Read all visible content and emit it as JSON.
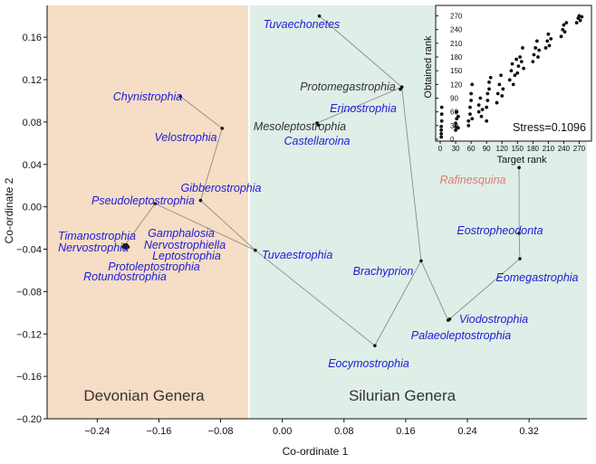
{
  "chart_data": [
    {
      "type": "scatter",
      "title": "",
      "xlabel": "Co-ordinate 1",
      "ylabel": "Co-ordinate 2",
      "xlim": [
        -0.305,
        0.395
      ],
      "ylim": [
        -0.2,
        0.19
      ],
      "x_ticks": [
        -0.24,
        -0.16,
        -0.08,
        0.0,
        0.08,
        0.16,
        0.24,
        0.32
      ],
      "x_tick_labels": [
        "−0.24",
        "−0.16",
        "−0.08",
        "0.00",
        "0.08",
        "0.16",
        "0.24",
        "0.32"
      ],
      "y_ticks": [
        0.16,
        0.12,
        0.08,
        0.04,
        0.0,
        -0.04,
        -0.08,
        -0.12,
        -0.16,
        -0.2
      ],
      "y_tick_labels": [
        "0.16",
        "0.12",
        "0.08",
        "0.04",
        "0.00",
        "−0.04",
        "−0.08",
        "−0.12",
        "−0.16",
        "−0.20"
      ],
      "regions": [
        {
          "label": "Devonian Genera",
          "x_range": [
            -0.305,
            -0.043
          ],
          "color": "#f6ddc5"
        },
        {
          "label": "Silurian Genera",
          "x_range": [
            -0.043,
            0.395
          ],
          "color": "#dfeee6"
        }
      ],
      "colors": {
        "blue_label": "#1c1cd8",
        "gray_label": "#333333",
        "red_label": "#e07a7a",
        "point": "#111111",
        "line": "#8c8c8c"
      },
      "points": [
        {
          "name": "Chynistrophia",
          "x": -0.132,
          "y": 0.104,
          "color": "blue"
        },
        {
          "name": "Velostrophia",
          "x": -0.078,
          "y": 0.074,
          "color": "blue"
        },
        {
          "name": "Gibberostrophia",
          "x": -0.106,
          "y": 0.006,
          "color": "blue"
        },
        {
          "name": "Pseudoleptostrophia",
          "x": -0.165,
          "y": 0.003,
          "color": "blue"
        },
        {
          "name": "Timanostrophia",
          "x": -0.204,
          "y": -0.037,
          "color": "blue"
        },
        {
          "name": "Nervostrophia",
          "x": -0.206,
          "y": -0.038,
          "color": "blue"
        },
        {
          "name": "Gamphalosia",
          "x": -0.202,
          "y": -0.036,
          "color": "blue"
        },
        {
          "name": "Nervostrophiella",
          "x": -0.2,
          "y": -0.038,
          "color": "blue"
        },
        {
          "name": "Leptostrophia",
          "x": -0.203,
          "y": -0.039,
          "color": "blue"
        },
        {
          "name": "Protoleptostrophia",
          "x": -0.201,
          "y": -0.037,
          "color": "blue"
        },
        {
          "name": "Rotundostrophia",
          "x": -0.205,
          "y": -0.036,
          "color": "blue"
        },
        {
          "name": "Tuvaestrophia",
          "x": -0.035,
          "y": -0.041,
          "color": "blue"
        },
        {
          "name": "Eocymostrophia",
          "x": 0.12,
          "y": -0.131,
          "color": "blue"
        },
        {
          "name": "Brachyprion",
          "x": 0.18,
          "y": -0.051,
          "color": "blue"
        },
        {
          "name": "Palaeoleptostrophia",
          "x": 0.215,
          "y": -0.107,
          "color": "blue"
        },
        {
          "name": "Viodostrophia",
          "x": 0.217,
          "y": -0.106,
          "color": "blue"
        },
        {
          "name": "Eomegastrophia",
          "x": 0.308,
          "y": -0.049,
          "color": "blue"
        },
        {
          "name": "Eostropheodonta",
          "x": 0.307,
          "y": -0.025,
          "color": "blue"
        },
        {
          "name": "Rafinesquina",
          "x": 0.307,
          "y": 0.037,
          "color": "red"
        },
        {
          "name": "Tuvaechonetes",
          "x": 0.048,
          "y": 0.18,
          "color": "blue"
        },
        {
          "name": "Protomegastrophia",
          "x": 0.155,
          "y": 0.113,
          "color": "gray"
        },
        {
          "name": "Erinostrophia",
          "x": 0.153,
          "y": 0.111,
          "color": "blue"
        },
        {
          "name": "Mesoleptostrophia",
          "x": 0.045,
          "y": 0.079,
          "color": "gray"
        },
        {
          "name": "Castellaroina",
          "x": 0.047,
          "y": 0.077,
          "color": "blue"
        }
      ],
      "edges": [
        [
          "Chynistrophia",
          "Velostrophia"
        ],
        [
          "Velostrophia",
          "Gibberostrophia"
        ],
        [
          "Gibberostrophia",
          "Tuvaestrophia"
        ],
        [
          "Pseudoleptostrophia",
          "Tuvaestrophia"
        ],
        [
          "Pseudoleptostrophia",
          "Nervostrophia"
        ],
        [
          "Tuvaestrophia",
          "Eocymostrophia"
        ],
        [
          "Eocymostrophia",
          "Brachyprion"
        ],
        [
          "Brachyprion",
          "Protomegastrophia"
        ],
        [
          "Brachyprion",
          "Palaeoleptostrophia"
        ],
        [
          "Palaeoleptostrophia",
          "Eomegastrophia"
        ],
        [
          "Eomegastrophia",
          "Eostropheodonta"
        ],
        [
          "Eostropheodonta",
          "Rafinesquina"
        ],
        [
          "Protomegastrophia",
          "Tuvaechonetes"
        ],
        [
          "Protomegastrophia",
          "Mesoleptostrophia"
        ]
      ]
    },
    {
      "type": "scatter",
      "title": "",
      "xlabel": "Target rank",
      "ylabel": "Obtained rank",
      "annotation": "Stress=0.1096",
      "xlim": [
        0,
        285
      ],
      "ylim": [
        0,
        285
      ],
      "x_ticks": [
        0,
        30,
        60,
        90,
        120,
        150,
        180,
        210,
        240,
        270
      ],
      "x_tick_labels": [
        "0",
        "30",
        "60",
        "90",
        "120",
        "150",
        "180",
        "210",
        "240",
        "270"
      ],
      "y_ticks": [
        0,
        30,
        60,
        90,
        120,
        150,
        180,
        210,
        240,
        270
      ],
      "y_tick_labels": [
        "0",
        "30",
        "60",
        "90",
        "120",
        "150",
        "180",
        "210",
        "240",
        "270"
      ],
      "points": [
        [
          2,
          5
        ],
        [
          2,
          12
        ],
        [
          2,
          20
        ],
        [
          2,
          28
        ],
        [
          3,
          40
        ],
        [
          3,
          55
        ],
        [
          3,
          70
        ],
        [
          30,
          20
        ],
        [
          30,
          28
        ],
        [
          30,
          35
        ],
        [
          32,
          45
        ],
        [
          32,
          60
        ],
        [
          35,
          25
        ],
        [
          35,
          50
        ],
        [
          55,
          30
        ],
        [
          55,
          40
        ],
        [
          58,
          55
        ],
        [
          58,
          70
        ],
        [
          60,
          85
        ],
        [
          60,
          100
        ],
        [
          62,
          120
        ],
        [
          62,
          45
        ],
        [
          75,
          60
        ],
        [
          75,
          75
        ],
        [
          78,
          90
        ],
        [
          80,
          50
        ],
        [
          82,
          65
        ],
        [
          90,
          40
        ],
        [
          90,
          70
        ],
        [
          92,
          85
        ],
        [
          92,
          100
        ],
        [
          95,
          110
        ],
        [
          95,
          125
        ],
        [
          98,
          135
        ],
        [
          110,
          80
        ],
        [
          112,
          100
        ],
        [
          115,
          120
        ],
        [
          118,
          140
        ],
        [
          120,
          95
        ],
        [
          122,
          110
        ],
        [
          135,
          130
        ],
        [
          138,
          150
        ],
        [
          140,
          165
        ],
        [
          142,
          120
        ],
        [
          145,
          140
        ],
        [
          148,
          175
        ],
        [
          150,
          145
        ],
        [
          152,
          160
        ],
        [
          155,
          180
        ],
        [
          158,
          170
        ],
        [
          160,
          200
        ],
        [
          162,
          155
        ],
        [
          180,
          170
        ],
        [
          182,
          185
        ],
        [
          185,
          200
        ],
        [
          188,
          215
        ],
        [
          190,
          180
        ],
        [
          192,
          195
        ],
        [
          205,
          200
        ],
        [
          208,
          215
        ],
        [
          210,
          230
        ],
        [
          212,
          205
        ],
        [
          215,
          220
        ],
        [
          235,
          225
        ],
        [
          238,
          240
        ],
        [
          240,
          250
        ],
        [
          242,
          235
        ],
        [
          245,
          255
        ],
        [
          265,
          255
        ],
        [
          268,
          265
        ],
        [
          270,
          270
        ],
        [
          272,
          260
        ],
        [
          275,
          268
        ]
      ]
    }
  ]
}
